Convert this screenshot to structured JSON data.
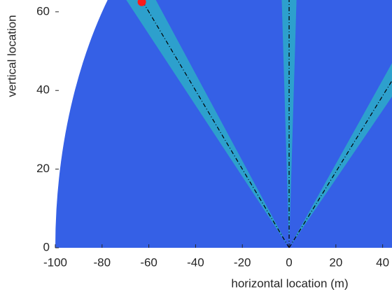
{
  "chart_data": {
    "type": "beam-map",
    "xlabel": "horizontal location (m)",
    "ylabel": "vertical location",
    "xlim": [
      -100,
      44
    ],
    "ylim": [
      0,
      63
    ],
    "xticks": [
      -100,
      -80,
      -60,
      -40,
      -20,
      0,
      20,
      40
    ],
    "yticks": [
      0,
      20,
      40,
      60
    ],
    "range": 100,
    "fan_color": "#3560e6",
    "beams": [
      135,
      90,
      44
    ],
    "beam_color": "#27d6b8",
    "target": {
      "x": -63,
      "y": 62.5,
      "color": "#ff1a1a"
    }
  }
}
